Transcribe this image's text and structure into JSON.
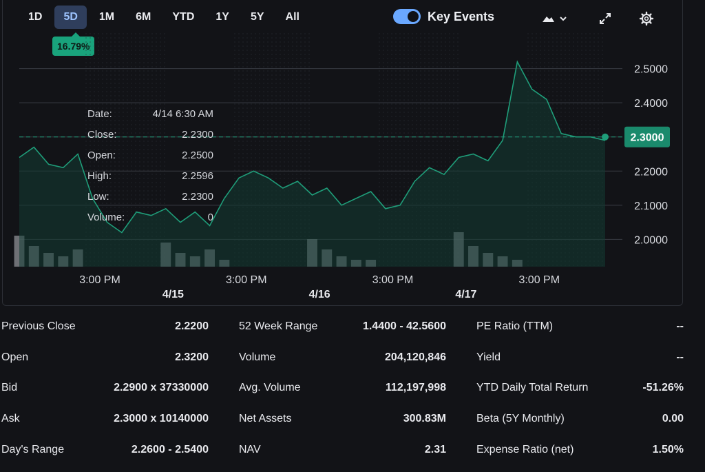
{
  "ranges": [
    "1D",
    "5D",
    "1M",
    "6M",
    "YTD",
    "1Y",
    "5Y",
    "All"
  ],
  "active_range": "5D",
  "change_badge": "16.79%",
  "key_events_label": "Key Events",
  "icons": [
    "mountain-icon",
    "chevron-down-icon",
    "expand-icon",
    "gear-icon"
  ],
  "current_price_label": "2.3000",
  "tooltip": {
    "date_label": "Date:",
    "date": "4/14 6:30 AM",
    "close_label": "Close:",
    "close": "2.2300",
    "open_label": "Open:",
    "open": "2.2500",
    "high_label": "High:",
    "high": "2.2596",
    "low_label": "Low:",
    "low": "2.2300",
    "volume_label": "Volume:",
    "volume": "0"
  },
  "chart_data": {
    "type": "line",
    "ylim": [
      1.92,
      2.58
    ],
    "y_ticks": [
      2.0,
      2.1,
      2.2,
      2.3,
      2.4,
      2.5
    ],
    "y_tick_labels": [
      "2.0000",
      "2.1000",
      "2.2000",
      "2.3000",
      "2.4000",
      "2.5000"
    ],
    "x_tick_labels": [
      "3:00 PM",
      "3:00 PM",
      "3:00 PM",
      "3:00 PM"
    ],
    "date_labels": [
      "4/15",
      "4/16",
      "4/17"
    ],
    "current_price": 2.3,
    "colors": {
      "line": "#1f9e7a",
      "fill": "#133d33",
      "grid": "#3a3d44",
      "badge": "#1a8a6c"
    },
    "x": [
      0,
      0.5,
      1,
      1.5,
      2,
      2.5,
      3,
      3.5,
      4,
      4.5,
      5,
      5.5,
      6,
      6.5,
      7,
      7.5,
      8,
      8.5,
      9,
      9.5,
      10,
      10.5,
      11,
      11.5,
      12,
      12.5,
      13,
      13.5,
      14,
      14.5,
      15,
      15.5,
      16,
      16.5,
      17,
      17.5,
      18,
      18.5,
      19,
      19.5,
      20
    ],
    "values": [
      2.24,
      2.27,
      2.22,
      2.21,
      2.25,
      2.12,
      2.05,
      2.02,
      2.08,
      2.07,
      2.09,
      2.05,
      2.08,
      2.04,
      2.12,
      2.18,
      2.2,
      2.18,
      2.15,
      2.17,
      2.13,
      2.15,
      2.1,
      2.12,
      2.14,
      2.09,
      2.1,
      2.17,
      2.21,
      2.19,
      2.24,
      2.25,
      2.23,
      2.29,
      2.52,
      2.44,
      2.41,
      2.31,
      2.3,
      2.3,
      2.29
    ],
    "volume": [
      0.9,
      0.6,
      0.4,
      0.3,
      0.5,
      0.0,
      0.0,
      0.0,
      0.0,
      0.0,
      0.7,
      0.4,
      0.3,
      0.5,
      0.2,
      0.0,
      0.0,
      0.0,
      0.0,
      0.0,
      0.8,
      0.5,
      0.3,
      0.2,
      0.2,
      0.0,
      0.0,
      0.0,
      0.0,
      0.0,
      1.0,
      0.6,
      0.4,
      0.3,
      0.2,
      0.0,
      0.0,
      0.0,
      0.0,
      0.0,
      0.0
    ]
  },
  "stats": [
    [
      {
        "label": "Previous Close",
        "value": "2.2200"
      },
      {
        "label": "Open",
        "value": "2.3200"
      },
      {
        "label": "Bid",
        "value": "2.2900 x 37330000"
      },
      {
        "label": "Ask",
        "value": "2.3000 x 10140000"
      },
      {
        "label": "Day's Range",
        "value": "2.2600 - 2.5400"
      }
    ],
    [
      {
        "label": "52 Week Range",
        "value": "1.4400 - 42.5600"
      },
      {
        "label": "Volume",
        "value": "204,120,846"
      },
      {
        "label": "Avg. Volume",
        "value": "112,197,998"
      },
      {
        "label": "Net Assets",
        "value": "300.83M"
      },
      {
        "label": "NAV",
        "value": "2.31"
      }
    ],
    [
      {
        "label": "PE Ratio (TTM)",
        "value": "--"
      },
      {
        "label": "Yield",
        "value": "--"
      },
      {
        "label": "YTD Daily Total Return",
        "value": "-51.26%"
      },
      {
        "label": "Beta (5Y Monthly)",
        "value": "0.00"
      },
      {
        "label": "Expense Ratio (net)",
        "value": "1.50%"
      }
    ]
  ]
}
